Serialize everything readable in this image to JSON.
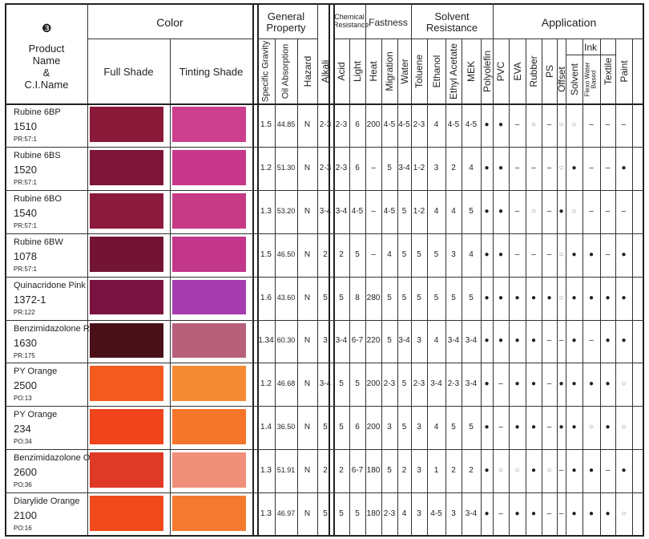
{
  "header": {
    "badge": "❸",
    "product_label": [
      "Product",
      "Name",
      "&",
      "C.I.Name"
    ],
    "color_group": "Color",
    "full_shade": "Full Shade",
    "tinting_shade": "Tinting Shade",
    "general_group": [
      "General",
      "Property"
    ],
    "chemical_group": [
      "Chemical",
      "Resistance"
    ],
    "fastness_group": "Fastness",
    "solvent_group": [
      "Solvent",
      "Resistance"
    ],
    "application_group": "Application",
    "ink_group": "Ink",
    "columns": [
      "Specific Gravity",
      "Oil Absorption",
      "Hazard",
      "Alkali",
      "Acid",
      "Light",
      "Heat",
      "Migration",
      "Water",
      "Toluene",
      "Ethanol",
      "Ethyl Acetate",
      "MEK",
      "Polyolefin",
      "PVC",
      "EVA",
      "Rubber",
      "PS",
      "Offset",
      "Solvent",
      "Flexo Water\nBased",
      "Textile",
      "Paint"
    ]
  },
  "legend": {
    "filled": "●",
    "open": "○",
    "dash": "–"
  },
  "products": [
    {
      "name": "Rubine 6BP",
      "code": "1510",
      "ci": "PR:57:1",
      "full": "#8a1838",
      "tint": "#cc3f8e",
      "vals": [
        "1.5",
        "44.85",
        "N",
        "2-3",
        "2-3",
        "6",
        "200",
        "4-5",
        "4-5",
        "2-3",
        "4",
        "4-5",
        "4-5"
      ],
      "app": [
        "●",
        "●",
        "–",
        "○",
        "–",
        "○",
        "○",
        "–",
        "–",
        "–"
      ]
    },
    {
      "name": "Rubine 6BS",
      "code": "1520",
      "ci": "PR:57:1",
      "full": "#7c1538",
      "tint": "#c7388a",
      "vals": [
        "1.2",
        "51.30",
        "N",
        "2-3",
        "2-3",
        "6",
        "–",
        "5",
        "3-4",
        "1-2",
        "3",
        "2",
        "4"
      ],
      "app": [
        "●",
        "●",
        "–",
        "–",
        "–",
        "○",
        "●",
        "–",
        "–",
        "●"
      ]
    },
    {
      "name": "Rubine 6BO",
      "code": "1540",
      "ci": "PR:57:1",
      "full": "#8c1a3c",
      "tint": "#c63a86",
      "vals": [
        "1.3",
        "53.20",
        "N",
        "3-4",
        "3-4",
        "4-5",
        "–",
        "4-5",
        "5",
        "1-2",
        "4",
        "4",
        "5"
      ],
      "app": [
        "●",
        "●",
        "–",
        "○",
        "–",
        "●",
        "○",
        "–",
        "–",
        "–"
      ]
    },
    {
      "name": "Rubine 6BW",
      "code": "1078",
      "ci": "PR:57:1",
      "full": "#731434",
      "tint": "#c2378a",
      "vals": [
        "1.5",
        "46.50",
        "N",
        "2",
        "2",
        "5",
        "–",
        "4",
        "5",
        "5",
        "5",
        "3",
        "4"
      ],
      "app": [
        "●",
        "●",
        "–",
        "–",
        "–",
        "○",
        "●",
        "●",
        "–",
        "●"
      ]
    },
    {
      "name": "Quinacridone Pink",
      "code": "1372-1",
      "ci": "PR:122",
      "full": "#7a1340",
      "tint": "#a63bb0",
      "vals": [
        "1.6",
        "43.60",
        "N",
        "5",
        "5",
        "8",
        "280",
        "5",
        "5",
        "5",
        "5",
        "5",
        "5"
      ],
      "app": [
        "●",
        "●",
        "●",
        "●",
        "●",
        "○",
        "●",
        "●",
        "●",
        "●"
      ]
    },
    {
      "name": "Benzimidazolone Red",
      "code": "1630",
      "ci": "PR:175",
      "full": "#4a1018",
      "tint": "#b8607a",
      "vals": [
        "1.34",
        "60.30",
        "N",
        "3",
        "3-4",
        "6-7",
        "220",
        "5",
        "3-4",
        "3",
        "4",
        "3-4",
        "3-4"
      ],
      "app": [
        "●",
        "●",
        "●",
        "●",
        "–",
        "–",
        "●",
        "–",
        "●",
        "●"
      ]
    },
    {
      "name": "PY Orange",
      "code": "2500",
      "ci": "PO:13",
      "full": "#f25a1e",
      "tint": "#f58a34",
      "vals": [
        "1.2",
        "46.68",
        "N",
        "3-4",
        "5",
        "5",
        "200",
        "2-3",
        "5",
        "2-3",
        "3-4",
        "2-3",
        "3-4"
      ],
      "app": [
        "●",
        "–",
        "●",
        "●",
        "–",
        "●",
        "●",
        "●",
        "●",
        "○"
      ]
    },
    {
      "name": "PY Orange",
      "code": "234",
      "ci": "PO:34",
      "full": "#f0441c",
      "tint": "#f5752a",
      "vals": [
        "1.4",
        "36.50",
        "N",
        "5",
        "5",
        "6",
        "200",
        "3",
        "5",
        "3",
        "4",
        "5",
        "5"
      ],
      "app": [
        "●",
        "–",
        "●",
        "●",
        "–",
        "●",
        "●",
        "○",
        "●",
        "○"
      ]
    },
    {
      "name": "Benzimidazolone Orange",
      "code": "2600",
      "ci": "PO:36",
      "full": "#df3a26",
      "tint": "#f0907a",
      "vals": [
        "1.3",
        "51.91",
        "N",
        "2",
        "2",
        "6-7",
        "180",
        "5",
        "2",
        "3",
        "1",
        "2",
        "2"
      ],
      "app": [
        "●",
        "○",
        "○",
        "●",
        "○",
        "–",
        "●",
        "●",
        "–",
        "●"
      ]
    },
    {
      "name": "Diarylide Orange",
      "code": "2100",
      "ci": "PO:16",
      "full": "#f04a1c",
      "tint": "#f57a30",
      "vals": [
        "1.3",
        "46.97",
        "N",
        "5",
        "5",
        "5",
        "180",
        "2-3",
        "4",
        "3",
        "4-5",
        "3",
        "3-4"
      ],
      "app": [
        "●",
        "–",
        "●",
        "●",
        "–",
        "–",
        "●",
        "●",
        "●",
        "○"
      ]
    }
  ]
}
